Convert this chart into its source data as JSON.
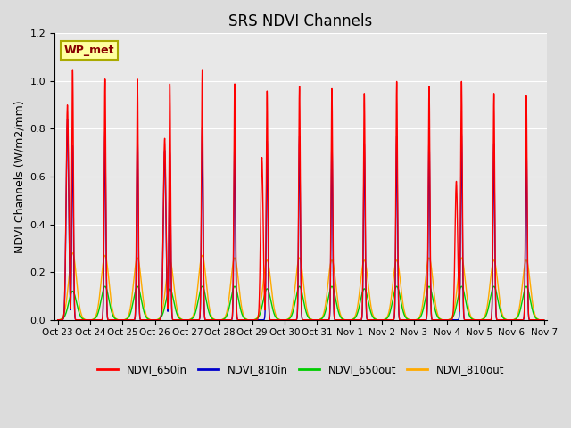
{
  "title": "SRS NDVI Channels",
  "ylabel": "NDVI Channels (W/m2/mm)",
  "ylim": [
    0.0,
    1.2
  ],
  "yticks": [
    0.0,
    0.2,
    0.4,
    0.6,
    0.8,
    1.0,
    1.2
  ],
  "background_color": "#dcdcdc",
  "plot_bg_color": "#e8e8e8",
  "annotation_text": "WP_met",
  "annotation_bg": "#ffffa0",
  "annotation_border": "#aaaa00",
  "annotation_text_color": "#880000",
  "grid_color": "white",
  "legend_items": [
    {
      "label": "NDVI_650in",
      "color": "#ff0000"
    },
    {
      "label": "NDVI_810in",
      "color": "#0000cc"
    },
    {
      "label": "NDVI_650out",
      "color": "#00cc00"
    },
    {
      "label": "NDVI_810out",
      "color": "#ffaa00"
    }
  ],
  "xtick_labels": [
    "Oct 23",
    "Oct 24",
    "Oct 25",
    "Oct 26",
    "Oct 27",
    "Oct 28",
    "Oct 29",
    "Oct 30",
    "Oct 31",
    "Nov 1",
    "Nov 2",
    "Nov 3",
    "Nov 4",
    "Nov 5",
    "Nov 6",
    "Nov 7"
  ],
  "xtick_positions": [
    0,
    1,
    2,
    3,
    4,
    5,
    6,
    7,
    8,
    9,
    10,
    11,
    12,
    13,
    14,
    15
  ],
  "num_days": 15,
  "day_peaks_650in": [
    1.05,
    1.01,
    1.01,
    0.99,
    1.05,
    0.99,
    0.96,
    0.98,
    0.97,
    0.95,
    1.0,
    0.98,
    1.0,
    0.95,
    0.94
  ],
  "day_peaks_810in": [
    0.73,
    0.79,
    0.78,
    0.7,
    0.81,
    0.76,
    0.75,
    0.77,
    0.75,
    0.74,
    0.77,
    0.77,
    0.78,
    0.74,
    0.74
  ],
  "day_side_650in": [
    0.9,
    0.0,
    0.0,
    0.76,
    0.0,
    0.0,
    0.68,
    0.0,
    0.0,
    0.0,
    0.0,
    0.0,
    0.58,
    0.0,
    0.0
  ],
  "day_side_810in": [
    0.84,
    0.0,
    0.0,
    0.71,
    0.0,
    0.0,
    0.0,
    0.0,
    0.0,
    0.0,
    0.0,
    0.0,
    0.0,
    0.0,
    0.0
  ],
  "day_peaks_650out": [
    0.12,
    0.14,
    0.14,
    0.13,
    0.14,
    0.14,
    0.13,
    0.14,
    0.14,
    0.13,
    0.14,
    0.14,
    0.14,
    0.14,
    0.14
  ],
  "day_peaks_810out": [
    0.28,
    0.27,
    0.26,
    0.25,
    0.27,
    0.26,
    0.25,
    0.26,
    0.25,
    0.25,
    0.25,
    0.26,
    0.26,
    0.25,
    0.25
  ],
  "color_650in": "#ff0000",
  "color_810in": "#0000cc",
  "color_650out": "#00cc00",
  "color_810out": "#ffaa00",
  "linewidth": 1.0,
  "sharp_sigma": 0.025,
  "broad_sigma": 0.12,
  "sharp_sigma_side": 0.04
}
